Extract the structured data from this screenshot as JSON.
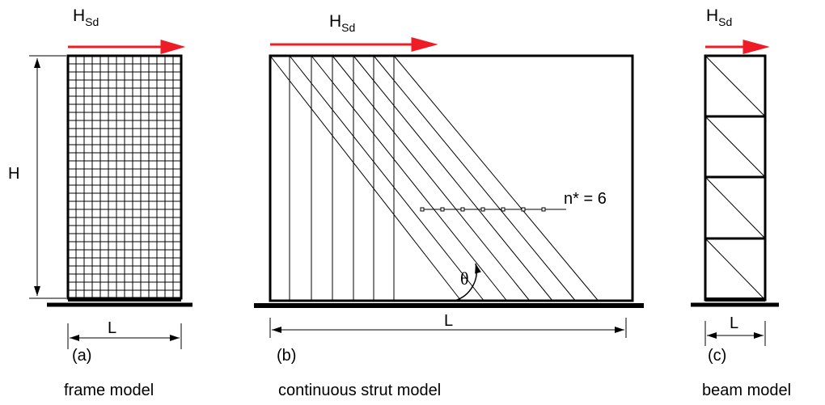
{
  "force_symbol": "H",
  "force_subscript": "Sd",
  "height_label": "H",
  "length_label": "L",
  "angle_label": "θ",
  "strut_count_label": "n* = 6",
  "colors": {
    "force_arrow": "#ee1c24",
    "lines": "#000000"
  },
  "panels": [
    {
      "tag": "(a)",
      "caption": "frame model"
    },
    {
      "tag": "(b)",
      "caption": "continuous strut model"
    },
    {
      "tag": "(c)",
      "caption": "beam model"
    }
  ]
}
